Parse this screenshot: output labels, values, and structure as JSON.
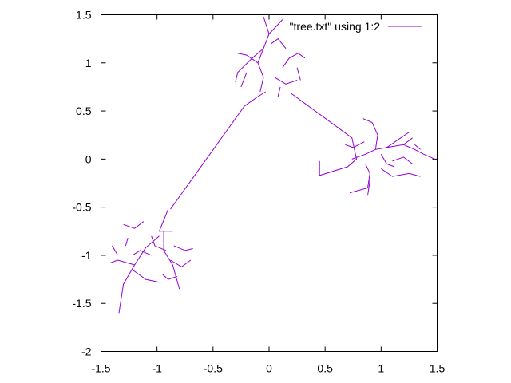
{
  "chart_data": {
    "type": "line",
    "title": "",
    "xlabel": "",
    "ylabel": "",
    "xlim": [
      -1.5,
      1.5
    ],
    "ylim": [
      -2,
      1.5
    ],
    "x_ticks": [
      "-1.5",
      "-1",
      "-0.5",
      "0",
      "0.5",
      "1",
      "1.5"
    ],
    "y_ticks": [
      "-2",
      "-1.5",
      "-1",
      "-0.5",
      "0",
      "0.5",
      "1",
      "1.5"
    ],
    "grid": false,
    "legend_position": "top-right",
    "series": [
      {
        "name": "\"tree.txt\" using 1:2",
        "color": "#9400d3",
        "segments": [
          [
            [
              -0.88,
              -0.52
            ],
            [
              -0.22,
              0.55
            ],
            [
              -0.1,
              0.65
            ],
            [
              -0.03,
              0.7
            ]
          ],
          [
            [
              0.2,
              0.68
            ],
            [
              0.74,
              0.22
            ],
            [
              0.78,
              0.0
            ],
            [
              0.7,
              -0.08
            ],
            [
              0.45,
              -0.17
            ],
            [
              0.45,
              -0.02
            ]
          ],
          [
            [
              -0.9,
              -0.52
            ],
            [
              -0.98,
              -0.75
            ],
            [
              -0.86,
              -0.75
            ]
          ],
          [
            [
              -0.94,
              -0.75
            ],
            [
              -0.94,
              -0.95
            ],
            [
              -0.86,
              -1.1
            ],
            [
              -0.8,
              -1.35
            ]
          ],
          [
            [
              -0.98,
              -0.8
            ],
            [
              -1.1,
              -0.92
            ],
            [
              -1.2,
              -1.1
            ],
            [
              -1.3,
              -1.3
            ],
            [
              -1.34,
              -1.6
            ]
          ],
          [
            [
              -1.2,
              -1.1
            ],
            [
              -1.35,
              -1.05
            ],
            [
              -1.42,
              -1.08
            ]
          ],
          [
            [
              -1.22,
              -1.15
            ],
            [
              -1.1,
              -1.25
            ],
            [
              -0.98,
              -1.28
            ]
          ],
          [
            [
              -1.3,
              -0.68
            ],
            [
              -1.2,
              -0.72
            ],
            [
              -1.12,
              -0.65
            ]
          ],
          [
            [
              -1.26,
              -0.82
            ],
            [
              -1.28,
              -0.9
            ]
          ],
          [
            [
              -1.05,
              -0.8
            ],
            [
              -1.02,
              -0.9
            ],
            [
              -0.92,
              -0.95
            ]
          ],
          [
            [
              -0.85,
              -0.9
            ],
            [
              -0.75,
              -0.95
            ],
            [
              -0.68,
              -0.93
            ]
          ],
          [
            [
              -0.88,
              -1.05
            ],
            [
              -0.78,
              -1.12
            ],
            [
              -0.7,
              -1.05
            ]
          ],
          [
            [
              -1.05,
              -1.0
            ],
            [
              -1.15,
              -0.95
            ],
            [
              -1.22,
              -1.0
            ]
          ],
          [
            [
              -0.95,
              -1.2
            ],
            [
              -0.9,
              -1.25
            ],
            [
              -0.82,
              -1.22
            ]
          ],
          [
            [
              -1.35,
              -1.0
            ],
            [
              -1.4,
              -0.9
            ]
          ],
          [
            [
              -0.08,
              0.7
            ],
            [
              -0.05,
              0.85
            ],
            [
              -0.1,
              1.0
            ],
            [
              -0.05,
              1.15
            ],
            [
              0.0,
              1.3
            ],
            [
              -0.05,
              1.48
            ]
          ],
          [
            [
              0.0,
              1.3
            ],
            [
              0.08,
              1.4
            ],
            [
              0.12,
              1.45
            ]
          ],
          [
            [
              -0.05,
              1.15
            ],
            [
              -0.15,
              1.05
            ],
            [
              -0.28,
              0.9
            ],
            [
              -0.3,
              0.8
            ]
          ],
          [
            [
              -0.1,
              1.0
            ],
            [
              -0.2,
              1.08
            ],
            [
              -0.28,
              1.1
            ]
          ],
          [
            [
              0.12,
              0.95
            ],
            [
              0.18,
              1.05
            ],
            [
              0.26,
              1.1
            ],
            [
              0.32,
              1.05
            ]
          ],
          [
            [
              0.05,
              0.85
            ],
            [
              0.15,
              0.78
            ],
            [
              0.25,
              0.82
            ]
          ],
          [
            [
              0.15,
              1.15
            ],
            [
              0.08,
              1.25
            ],
            [
              0.02,
              1.2
            ]
          ],
          [
            [
              -0.2,
              0.9
            ],
            [
              -0.25,
              0.75
            ]
          ],
          [
            [
              0.25,
              0.95
            ],
            [
              0.28,
              0.82
            ]
          ],
          [
            [
              0.1,
              0.75
            ],
            [
              0.08,
              0.65
            ]
          ],
          [
            [
              0.74,
              0.0
            ],
            [
              0.86,
              0.05
            ],
            [
              0.95,
              0.1
            ],
            [
              1.05,
              0.12
            ],
            [
              1.2,
              0.15
            ],
            [
              1.3,
              0.1
            ],
            [
              1.38,
              0.05
            ],
            [
              1.48,
              0.0
            ]
          ],
          [
            [
              0.95,
              0.1
            ],
            [
              0.97,
              0.25
            ],
            [
              0.92,
              0.38
            ],
            [
              0.84,
              0.42
            ]
          ],
          [
            [
              1.05,
              0.12
            ],
            [
              1.15,
              0.2
            ],
            [
              1.25,
              0.28
            ]
          ],
          [
            [
              0.86,
              -0.05
            ],
            [
              0.9,
              -0.15
            ],
            [
              0.88,
              -0.3
            ],
            [
              0.72,
              -0.35
            ]
          ],
          [
            [
              1.0,
              -0.1
            ],
            [
              1.1,
              -0.18
            ],
            [
              1.25,
              -0.15
            ],
            [
              1.35,
              -0.18
            ]
          ],
          [
            [
              1.1,
              -0.02
            ],
            [
              1.2,
              0.02
            ],
            [
              1.28,
              -0.05
            ]
          ],
          [
            [
              0.85,
              0.18
            ],
            [
              0.75,
              0.12
            ],
            [
              0.68,
              0.15
            ]
          ],
          [
            [
              0.9,
              -0.22
            ],
            [
              0.88,
              -0.38
            ]
          ],
          [
            [
              1.0,
              0.05
            ],
            [
              1.05,
              -0.05
            ],
            [
              1.12,
              -0.08
            ]
          ],
          [
            [
              1.2,
              0.15
            ],
            [
              1.28,
              0.22
            ]
          ],
          [
            [
              1.35,
              0.1
            ],
            [
              1.3,
              0.15
            ]
          ]
        ]
      }
    ]
  }
}
